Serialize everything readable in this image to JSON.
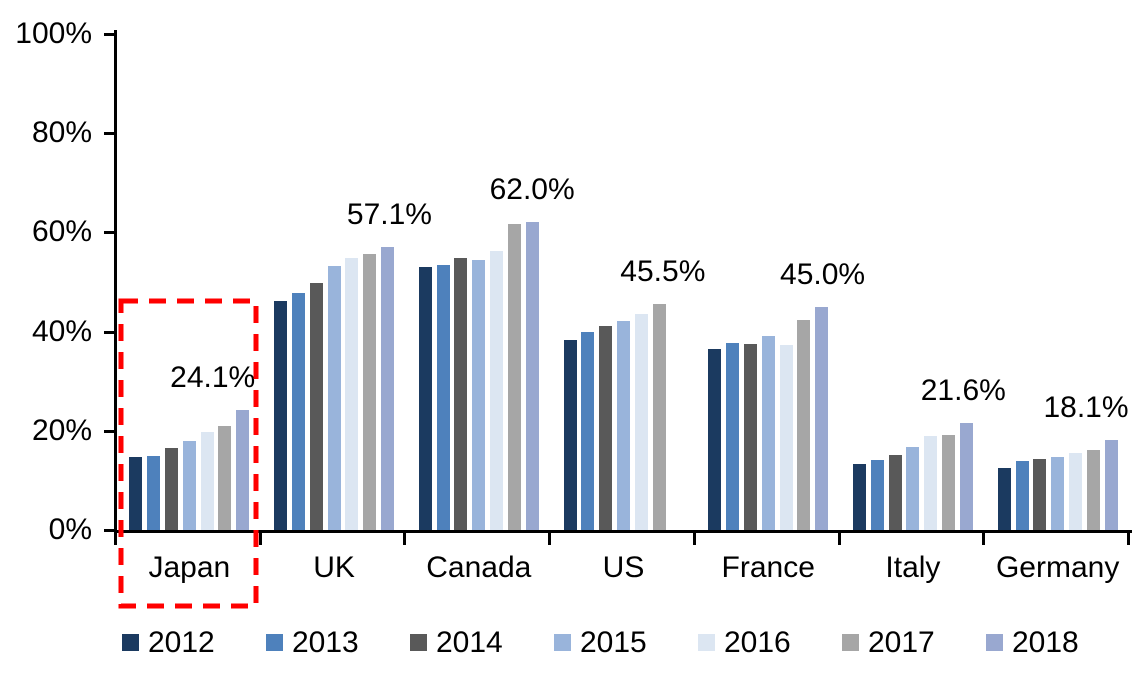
{
  "chart_data": {
    "type": "bar",
    "title": "",
    "xlabel": "",
    "ylabel": "",
    "categories": [
      "Japan",
      "UK",
      "Canada",
      "US",
      "France",
      "Italy",
      "Germany"
    ],
    "series": [
      {
        "name": "2012",
        "color": "#1B3A60",
        "values": [
          14.7,
          46.2,
          53.0,
          38.3,
          36.5,
          13.3,
          12.5
        ]
      },
      {
        "name": "2013",
        "color": "#4E81BC",
        "values": [
          15.0,
          47.8,
          53.4,
          40.0,
          37.7,
          14.1,
          14.0
        ]
      },
      {
        "name": "2014",
        "color": "#595959",
        "values": [
          16.5,
          49.8,
          54.8,
          41.1,
          37.6,
          15.2,
          14.4
        ]
      },
      {
        "name": "2015",
        "color": "#99B4DB",
        "values": [
          18.0,
          53.2,
          54.5,
          42.1,
          39.2,
          16.8,
          14.8
        ]
      },
      {
        "name": "2016",
        "color": "#DCE6F2",
        "values": [
          19.8,
          54.8,
          56.2,
          43.6,
          37.3,
          18.9,
          15.5
        ]
      },
      {
        "name": "2017",
        "color": "#A6A6A6",
        "values": [
          20.9,
          55.7,
          61.6,
          45.5,
          42.3,
          19.1,
          16.1
        ]
      },
      {
        "name": "2018",
        "color": "#99A8D0",
        "values": [
          24.1,
          57.1,
          62.0,
          null,
          45.0,
          21.6,
          18.1
        ]
      }
    ],
    "data_labels": [
      "24.1%",
      "57.1%",
      "62.0%",
      "45.5%",
      "45.0%",
      "21.6%",
      "18.1%"
    ],
    "y_axis": {
      "min": 0,
      "max": 100,
      "tick_step": 20,
      "tick_labels": [
        "0%",
        "20%",
        "40%",
        "60%",
        "80%",
        "100%"
      ]
    },
    "legend": {
      "position": "bottom",
      "entries": [
        "2012",
        "2013",
        "2014",
        "2015",
        "2016",
        "2017",
        "2018"
      ]
    },
    "grid": false,
    "annotation": {
      "shape": "dashed-rectangle",
      "highlights": "Japan",
      "color": "#FF0000"
    }
  }
}
